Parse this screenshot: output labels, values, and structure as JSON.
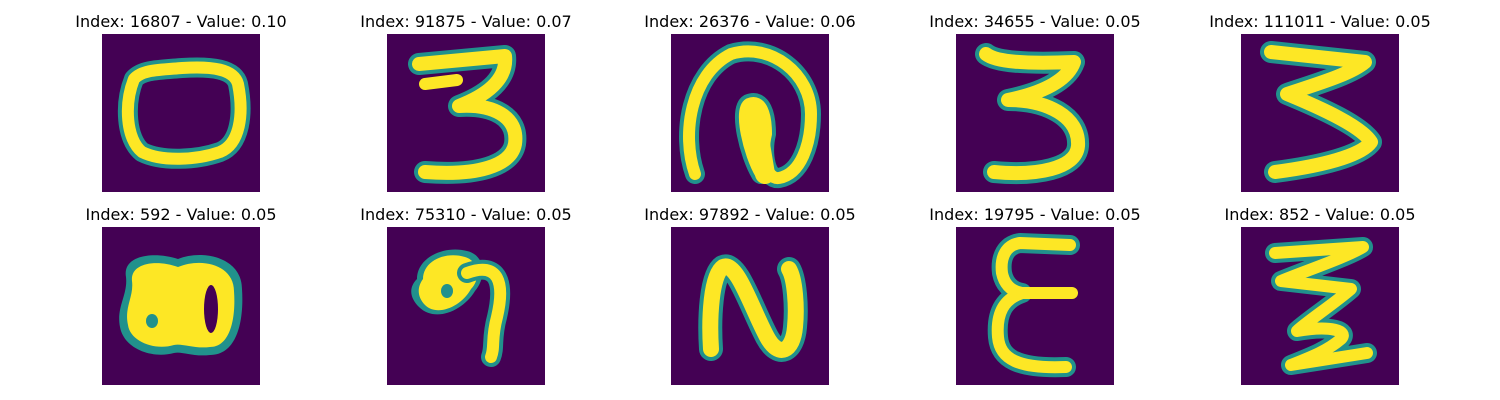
{
  "figure": {
    "panels": [
      {
        "title": "Index: 16807 - Value: 0.10",
        "glyph": "0"
      },
      {
        "title": "Index: 91875 - Value: 0.07",
        "glyph": "3"
      },
      {
        "title": "Index: 26376 - Value: 0.06",
        "glyph": "loop"
      },
      {
        "title": "Index: 34655 - Value: 0.05",
        "glyph": "3"
      },
      {
        "title": "Index: 111011 - Value: 0.05",
        "glyph": "3"
      },
      {
        "title": "Index: 592 - Value: 0.05",
        "glyph": "8"
      },
      {
        "title": "Index: 75310 - Value: 0.05",
        "glyph": "9"
      },
      {
        "title": "Index: 97892 - Value: 0.05",
        "glyph": "N"
      },
      {
        "title": "Index: 19795 - Value: 0.05",
        "glyph": "E"
      },
      {
        "title": "Index: 852 - Value: 0.05",
        "glyph": "Z"
      }
    ],
    "colormap": {
      "background": "#440154",
      "edge_teal": "#21918c",
      "mid_green": "#5ec962",
      "foreground": "#fde725"
    }
  }
}
